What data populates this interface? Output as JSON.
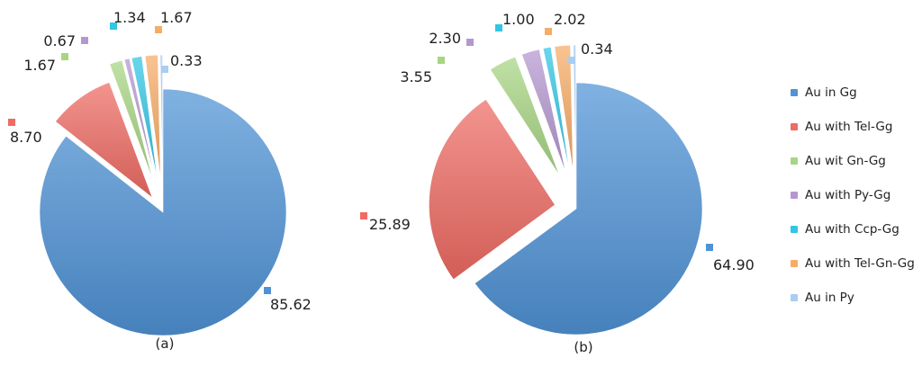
{
  "colors": {
    "Au in Gg": "#4f93d6",
    "Au with Tel-Gg": "#ef6b63",
    "Au wit Gn-Gg": "#a8d583",
    "Au with Py-Gg": "#b597d0",
    "Au with Ccp-Gg": "#31c6e3",
    "Au with Tel-Gn-Gg": "#f7ac66",
    "Au in Py": "#a9cdf3"
  },
  "legend": [
    "Au in Gg",
    "Au with Tel-Gg",
    "Au wit Gn-Gg",
    "Au with Py-Gg",
    "Au with Ccp-Gg",
    "Au with Tel-Gn-Gg",
    "Au in Py"
  ],
  "chart_data": [
    {
      "type": "pie",
      "caption": "(a)",
      "categories": [
        "Au in Gg",
        "Au with Tel-Gg",
        "Au wit Gn-Gg",
        "Au with Py-Gg",
        "Au with Ccp-Gg",
        "Au with Tel-Gn-Gg",
        "Au in Py"
      ],
      "values": [
        85.62,
        8.7,
        1.67,
        0.67,
        1.34,
        1.67,
        0.33
      ],
      "value_labels": [
        "85.62",
        "8.70",
        "1.67",
        "0.67",
        "1.34",
        "1.67",
        "0.33"
      ]
    },
    {
      "type": "pie",
      "caption": "(b)",
      "categories": [
        "Au in Gg",
        "Au with Tel-Gg",
        "Au wit Gn-Gg",
        "Au with Py-Gg",
        "Au with Ccp-Gg",
        "Au with Tel-Gn-Gg",
        "Au in Py"
      ],
      "values": [
        64.9,
        25.89,
        3.55,
        2.3,
        1.0,
        2.02,
        0.34
      ],
      "value_labels": [
        "64.90",
        "25.89",
        "3.55",
        "2.30",
        "1.00",
        "2.02",
        "0.34"
      ]
    }
  ]
}
